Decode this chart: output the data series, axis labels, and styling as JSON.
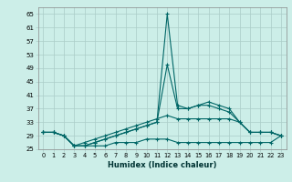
{
  "xlabel": "Humidex (Indice chaleur)",
  "x": [
    0,
    1,
    2,
    3,
    4,
    5,
    6,
    7,
    8,
    9,
    10,
    11,
    12,
    13,
    14,
    15,
    16,
    17,
    18,
    19,
    20,
    21,
    22,
    23
  ],
  "line1": [
    30,
    30,
    29,
    26,
    26,
    27,
    28,
    29,
    30,
    31,
    32,
    33,
    65,
    38,
    37,
    38,
    39,
    38,
    37,
    33,
    30,
    30,
    30,
    29
  ],
  "line2": [
    30,
    30,
    29,
    26,
    26,
    27,
    28,
    29,
    30,
    31,
    32,
    33,
    50,
    37,
    37,
    38,
    38,
    37,
    36,
    33,
    30,
    30,
    30,
    29
  ],
  "line3": [
    30,
    30,
    29,
    26,
    27,
    28,
    29,
    30,
    31,
    32,
    33,
    34,
    35,
    34,
    34,
    34,
    34,
    34,
    34,
    33,
    30,
    30,
    30,
    29
  ],
  "line4": [
    30,
    30,
    29,
    26,
    26,
    26,
    26,
    27,
    27,
    27,
    28,
    28,
    28,
    27,
    27,
    27,
    27,
    27,
    27,
    27,
    27,
    27,
    27,
    29
  ],
  "ylim": [
    25,
    67
  ],
  "yticks": [
    25,
    29,
    33,
    37,
    41,
    45,
    49,
    53,
    57,
    61,
    65
  ],
  "xlim": [
    -0.5,
    23.5
  ],
  "xticks": [
    0,
    1,
    2,
    3,
    4,
    5,
    6,
    7,
    8,
    9,
    10,
    11,
    12,
    13,
    14,
    15,
    16,
    17,
    18,
    19,
    20,
    21,
    22,
    23
  ],
  "line_color": "#006666",
  "bg_color": "#cceee8",
  "grid_color": "#aaccc8"
}
